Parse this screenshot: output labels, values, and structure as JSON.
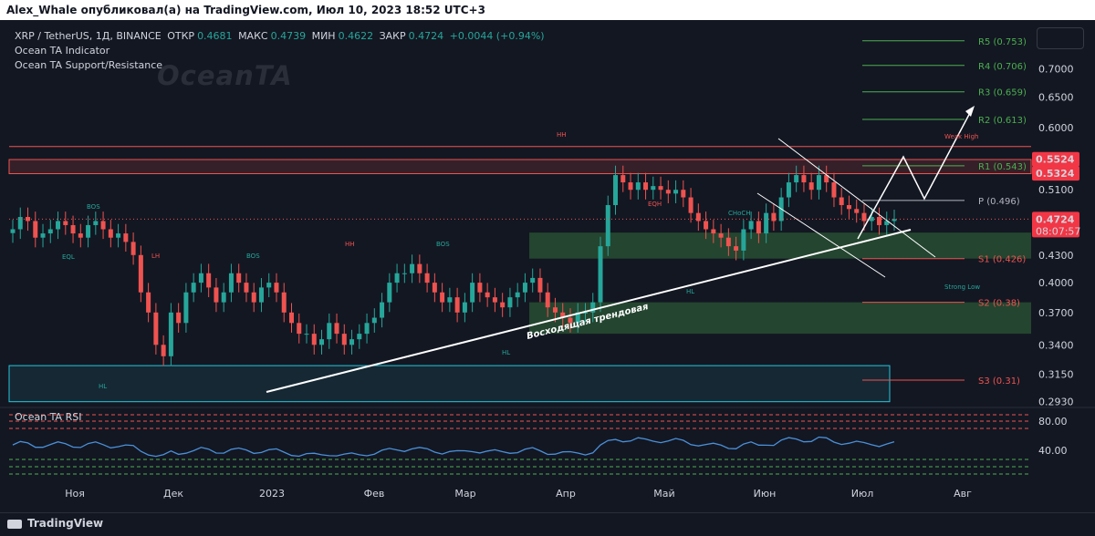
{
  "header": {
    "publisher_line": "Alex_Whale опубликовал(а) на TradingView.com, Июл 10, 2023 18:52 UTC+3"
  },
  "legend": {
    "symbol": "XRP / TetherUS, 1Д, BINANCE",
    "open_label": "ОТКР",
    "open_value": "0.4681",
    "high_label": "МАКС",
    "high_value": "0.4739",
    "low_label": "МИН",
    "low_value": "0.4622",
    "close_label": "ЗАКР",
    "close_value": "0.4724",
    "change": "+0.0044 (+0.94%)",
    "indicator1": "Ocean TA Indicator",
    "indicator2": "Ocean TA Support/Resistance"
  },
  "watermark": "OceanTA",
  "rsi": {
    "label": "Ocean TA RSI",
    "ticks": [
      "80.00",
      "40.00"
    ]
  },
  "footer": {
    "brand": "TradingView"
  },
  "colors": {
    "bg": "#131722",
    "up": "#26a69a",
    "down": "#ef5350",
    "green_zone": "#1b5e20",
    "red_zone": "#6b2a2f",
    "price_tag": "#f23645",
    "pivot_line": "#4caf50"
  },
  "chart_data": {
    "type": "candlestick",
    "y_scale": "log",
    "ylim": [
      0.29,
      0.78
    ],
    "y_ticks": [
      "0.7000",
      "0.6500",
      "0.6000",
      "0.5500",
      "0.5100",
      "0.4700",
      "0.4300",
      "0.4000",
      "0.3700",
      "0.3400",
      "0.3150",
      "0.2930"
    ],
    "x_ticks": [
      "Ноя",
      "Дек",
      "2023",
      "Фев",
      "Мар",
      "Апр",
      "Май",
      "Июн",
      "Июл",
      "Авг"
    ],
    "pivots": [
      {
        "label": "R5 (0.753)",
        "value": 0.753
      },
      {
        "label": "R4 (0.706)",
        "value": 0.706
      },
      {
        "label": "R3 (0.659)",
        "value": 0.659
      },
      {
        "label": "R2 (0.613)",
        "value": 0.613
      },
      {
        "label": "R1 (0.543)",
        "value": 0.543
      },
      {
        "label": "P (0.496)",
        "value": 0.496
      },
      {
        "label": "S1 (0.426)",
        "value": 0.426
      },
      {
        "label": "S2 (0.38)",
        "value": 0.38
      },
      {
        "label": "S3 (0.31)",
        "value": 0.31
      }
    ],
    "price_tags": [
      {
        "text": "0.5524",
        "value": 0.5524
      },
      {
        "text": "0.5324",
        "value": 0.5324
      },
      {
        "text": "0.4724",
        "value": 0.4724,
        "timer": "08:07:57"
      }
    ],
    "trendline_label": "Восходящая трендовая",
    "annotations": [
      "HH",
      "HH",
      "LH",
      "HL",
      "HL",
      "HL",
      "BOS",
      "BOS",
      "BOS",
      "CHoCH",
      "EQH",
      "EQL",
      "Weak High",
      "Strong Low"
    ],
    "zones": [
      {
        "kind": "resistance",
        "from": 0.532,
        "to": 0.552
      },
      {
        "kind": "support",
        "from": 0.426,
        "to": 0.456
      },
      {
        "kind": "support",
        "from": 0.35,
        "to": 0.38
      },
      {
        "kind": "demand",
        "from": 0.293,
        "to": 0.322
      }
    ],
    "series": [
      {
        "name": "XRP / TetherUS",
        "close": [
          0.46,
          0.475,
          0.47,
          0.45,
          0.455,
          0.46,
          0.47,
          0.465,
          0.455,
          0.45,
          0.465,
          0.47,
          0.46,
          0.45,
          0.455,
          0.445,
          0.43,
          0.39,
          0.37,
          0.34,
          0.33,
          0.37,
          0.36,
          0.39,
          0.4,
          0.41,
          0.395,
          0.38,
          0.39,
          0.41,
          0.4,
          0.39,
          0.38,
          0.395,
          0.4,
          0.39,
          0.37,
          0.36,
          0.35,
          0.35,
          0.34,
          0.345,
          0.36,
          0.35,
          0.34,
          0.345,
          0.35,
          0.36,
          0.365,
          0.38,
          0.4,
          0.41,
          0.41,
          0.42,
          0.41,
          0.4,
          0.39,
          0.38,
          0.385,
          0.37,
          0.38,
          0.4,
          0.39,
          0.385,
          0.38,
          0.375,
          0.385,
          0.39,
          0.4,
          0.405,
          0.39,
          0.375,
          0.37,
          0.365,
          0.36,
          0.37,
          0.37,
          0.38,
          0.44,
          0.49,
          0.53,
          0.52,
          0.51,
          0.52,
          0.51,
          0.515,
          0.51,
          0.505,
          0.51,
          0.5,
          0.48,
          0.47,
          0.46,
          0.455,
          0.45,
          0.44,
          0.435,
          0.46,
          0.47,
          0.455,
          0.48,
          0.47,
          0.5,
          0.52,
          0.53,
          0.52,
          0.51,
          0.53,
          0.52,
          0.5,
          0.49,
          0.485,
          0.48,
          0.47,
          0.475,
          0.465,
          0.47,
          0.4724
        ]
      }
    ]
  }
}
